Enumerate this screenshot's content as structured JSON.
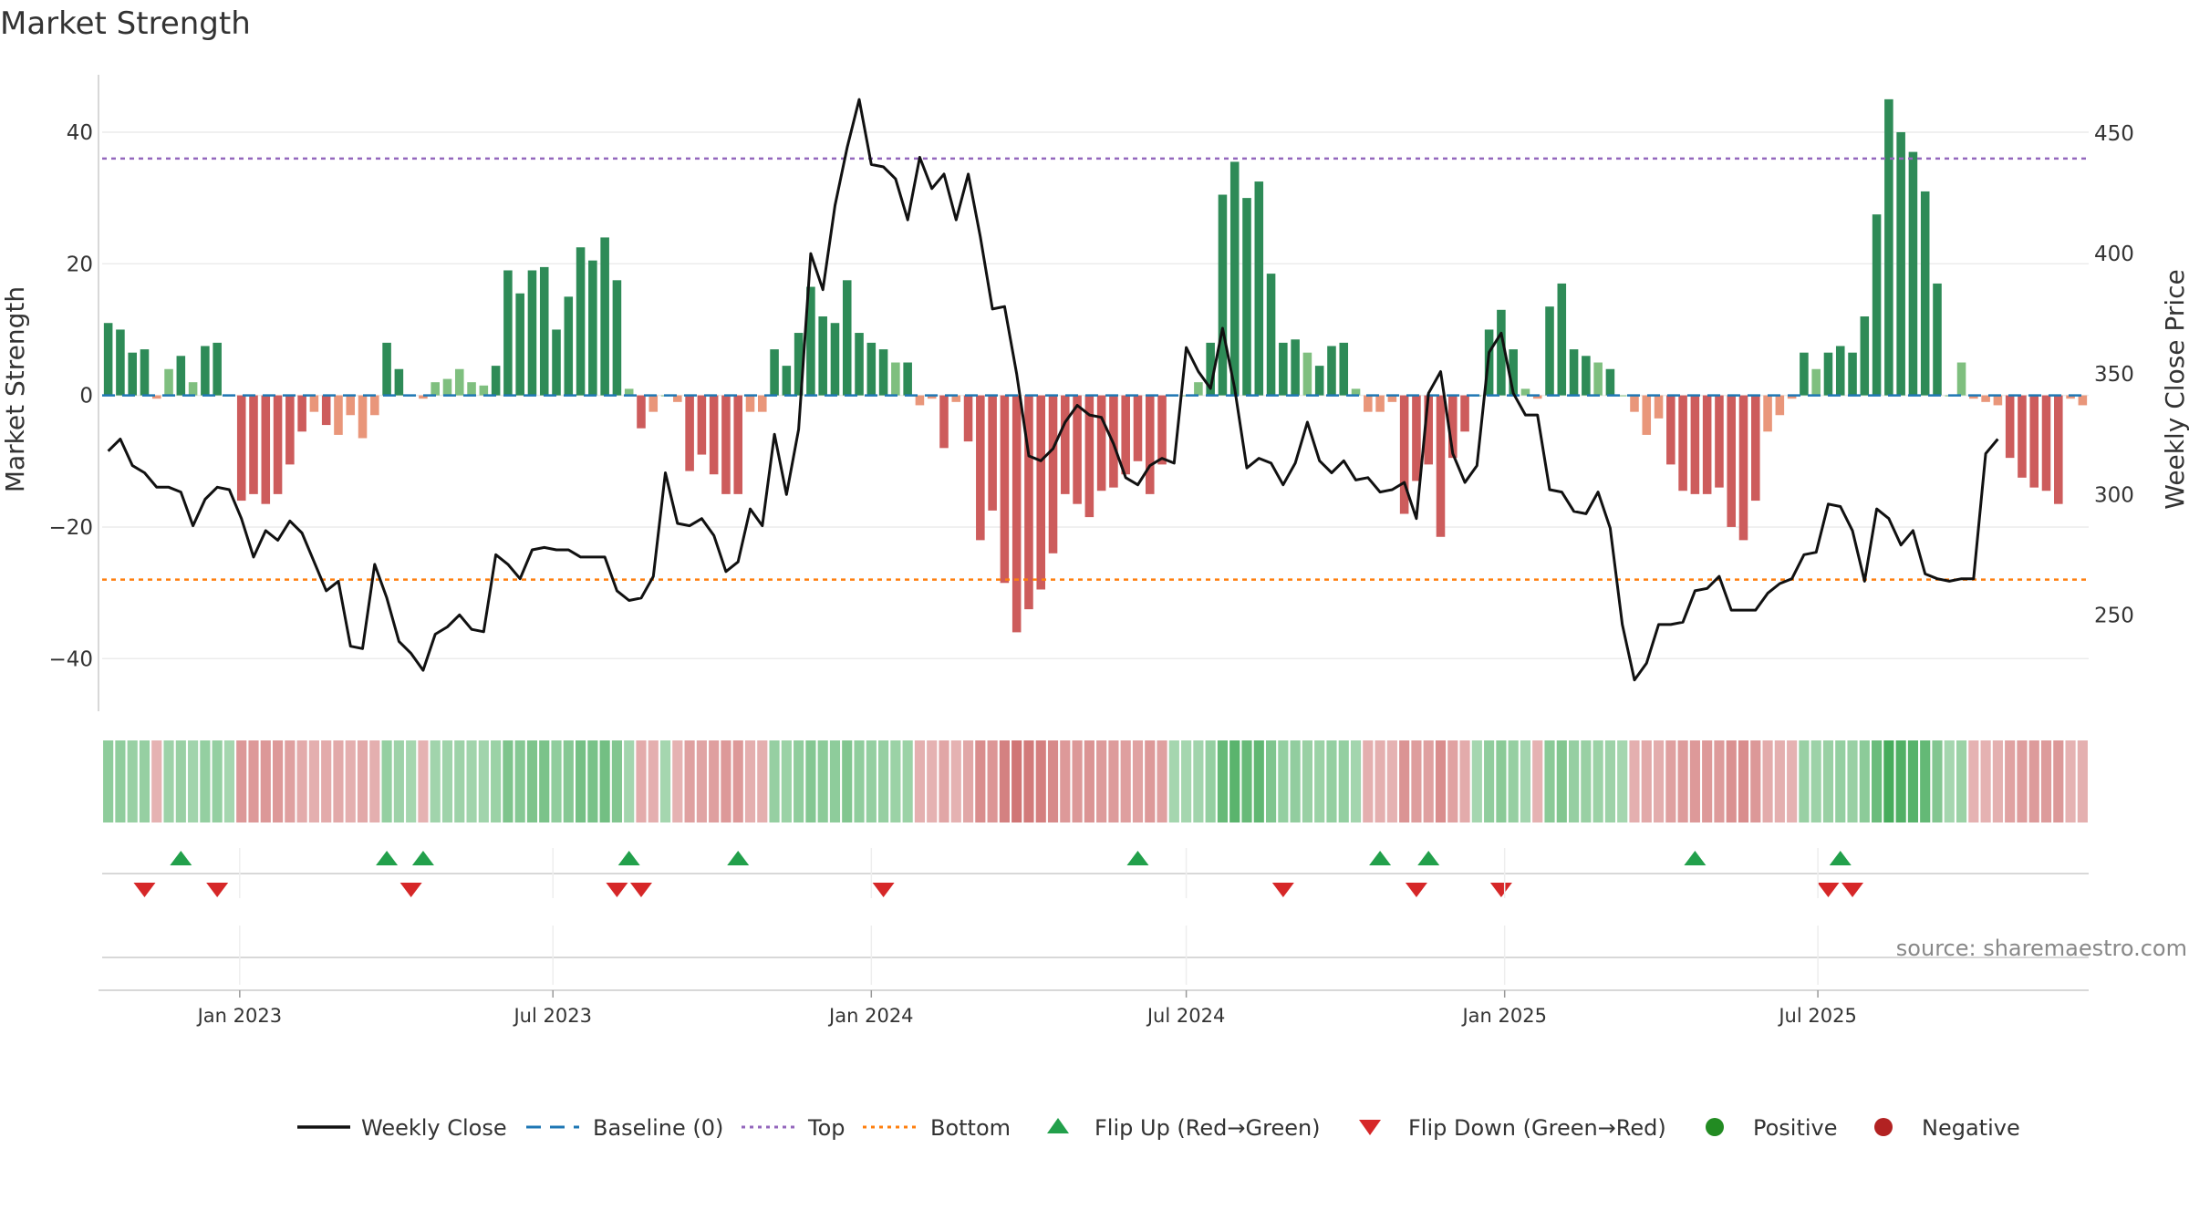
{
  "chart_data": {
    "type": "bar",
    "title": "Market Strength",
    "ylabel_left": "Market Strength",
    "ylabel_right": "Weekly Close Price",
    "ylim_left": [
      -48,
      49
    ],
    "ylim_right": [
      210,
      475
    ],
    "yticks_left": [
      40,
      20,
      0,
      -20,
      -40
    ],
    "yticks_left_labels": [
      "40",
      "20",
      "0",
      "−20",
      "−40"
    ],
    "yticks_right": [
      450,
      400,
      350,
      300,
      250
    ],
    "yticks_right_labels": [
      "450",
      "400",
      "350",
      "300",
      "250"
    ],
    "x_start": "2022-10-17",
    "x_step_days": 7,
    "x_ticks": [
      {
        "date": "2023-01-01",
        "label": "Jan 2023"
      },
      {
        "date": "2023-07-01",
        "label": "Jul 2023"
      },
      {
        "date": "2024-01-01",
        "label": "Jan 2024"
      },
      {
        "date": "2024-07-01",
        "label": "Jul 2024"
      },
      {
        "date": "2025-01-01",
        "label": "Jan 2025"
      },
      {
        "date": "2025-07-01",
        "label": "Jul 2025"
      }
    ],
    "top_level": 36,
    "bottom_level": -28,
    "baseline": 0,
    "market_strength": [
      11,
      10,
      6.5,
      7,
      -0.5,
      4,
      6,
      2,
      7.5,
      8,
      0,
      -16,
      -15,
      -16.5,
      -15,
      -10.5,
      -5.5,
      -2.5,
      -4.5,
      -6,
      -3,
      -6.5,
      -3,
      8,
      4,
      0,
      -0.5,
      2,
      2.5,
      4,
      2,
      1.5,
      4.5,
      19,
      15.5,
      19,
      19.5,
      10,
      15,
      22.5,
      20.5,
      24,
      17.5,
      1,
      -5,
      -2.5,
      0,
      -1,
      -11.5,
      -9,
      -12,
      -15,
      -15,
      -2.5,
      -2.5,
      7,
      4.5,
      9.5,
      16.5,
      12,
      11,
      17.5,
      9.5,
      8,
      7,
      5,
      5,
      -1.5,
      -0.5,
      -8,
      -1,
      -7,
      -22,
      -17.5,
      -28.5,
      -36,
      -32.5,
      -29.5,
      -24,
      -15,
      -16.5,
      -18.5,
      -14.5,
      -14,
      -12,
      -10,
      -15,
      -10.5,
      0,
      0,
      2,
      8,
      30.5,
      35.5,
      30,
      32.5,
      18.5,
      8,
      8.5,
      6.5,
      4.5,
      7.5,
      8,
      1,
      -2.5,
      -2.5,
      -1,
      -18,
      -13,
      -10.5,
      -21.5,
      -9.5,
      -5.5,
      0,
      10,
      13,
      7,
      1,
      -0.5,
      13.5,
      17,
      7,
      6,
      5,
      4,
      0,
      -2.5,
      -6,
      -3.5,
      -10.5,
      -14.5,
      -15,
      -15,
      -14,
      -20,
      -22,
      -16,
      -5.5,
      -3,
      -0.5,
      6.5,
      4,
      6.5,
      7.5,
      6.5,
      12,
      27.5,
      45,
      40,
      37,
      31,
      17,
      0,
      5,
      -0.5,
      -1,
      -1.5,
      -9.5,
      -12.5,
      -14,
      -14.5,
      -16.5,
      -0.5,
      -1.5
    ],
    "weekly_close": [
      318,
      323,
      312,
      309,
      303,
      303,
      301,
      287,
      298,
      303,
      302,
      290,
      274,
      285,
      281,
      289,
      284,
      272,
      260,
      264,
      237,
      236,
      271,
      257,
      239,
      234,
      227,
      242,
      245,
      250,
      244,
      243,
      275,
      271,
      265,
      277,
      278,
      277,
      277,
      274,
      274,
      274,
      260,
      256,
      257,
      266,
      309,
      288,
      287,
      290,
      283,
      268,
      272,
      294,
      287,
      325,
      300,
      327,
      400,
      385,
      420,
      444,
      464,
      437,
      436,
      431,
      414,
      440,
      427,
      433,
      414,
      433,
      407,
      377,
      378,
      350,
      316,
      314,
      319,
      330,
      337,
      333,
      332,
      321,
      307,
      304,
      312,
      315,
      313,
      361,
      351,
      344,
      369,
      344,
      311,
      315,
      313,
      304,
      313,
      330,
      314,
      309,
      314,
      306,
      307,
      301,
      302,
      305,
      290,
      342,
      351,
      317,
      305,
      312,
      359,
      367,
      342,
      333,
      333,
      302,
      301,
      293,
      292,
      301,
      286,
      246,
      223,
      230,
      246,
      246,
      247,
      260,
      261,
      266,
      252,
      252,
      252,
      259,
      263,
      265,
      275,
      276,
      296,
      295,
      285,
      264,
      294,
      290,
      279,
      285,
      267,
      265,
      264,
      265,
      265,
      317,
      323
    ]
  },
  "flips": {
    "up": [
      "2022-11-28",
      "2023-03-27",
      "2023-04-17",
      "2023-08-14",
      "2023-10-16",
      "2024-06-03",
      "2024-10-21",
      "2024-11-18",
      "2025-04-21",
      "2025-07-14"
    ],
    "down": [
      "2022-11-07",
      "2022-12-19",
      "2023-04-10",
      "2023-08-07",
      "2023-08-21",
      "2024-01-08",
      "2024-08-26",
      "2024-11-11",
      "2024-12-30",
      "2025-07-07",
      "2025-07-21"
    ]
  },
  "colors": {
    "strong_green": "#2e8b57",
    "light_green": "#7fbf7f",
    "strong_red": "#cd5c5c",
    "light_red": "#e9967a",
    "line": "#111111",
    "baseline": "#1f77b4",
    "top": "#9467bd",
    "bottom": "#ff7f0e",
    "flip_up": "#22a04b",
    "flip_down": "#d62728",
    "positive": "#228b22",
    "negative": "#b22222"
  },
  "source": "source: sharemaestro.com",
  "legend": [
    {
      "key": "weekly-close",
      "label": "Weekly Close",
      "marker": "line"
    },
    {
      "key": "baseline",
      "label": "Baseline (0)",
      "marker": "dash"
    },
    {
      "key": "top",
      "label": "Top",
      "marker": "dot-purple"
    },
    {
      "key": "bottom",
      "label": "Bottom",
      "marker": "dot-orange"
    },
    {
      "key": "flip-up",
      "label": "Flip Up (Red→Green)",
      "marker": "tri-up"
    },
    {
      "key": "flip-down",
      "label": "Flip Down (Green→Red)",
      "marker": "tri-down"
    },
    {
      "key": "positive",
      "label": "Positive",
      "marker": "circle-green"
    },
    {
      "key": "negative",
      "label": "Negative",
      "marker": "circle-red"
    }
  ]
}
